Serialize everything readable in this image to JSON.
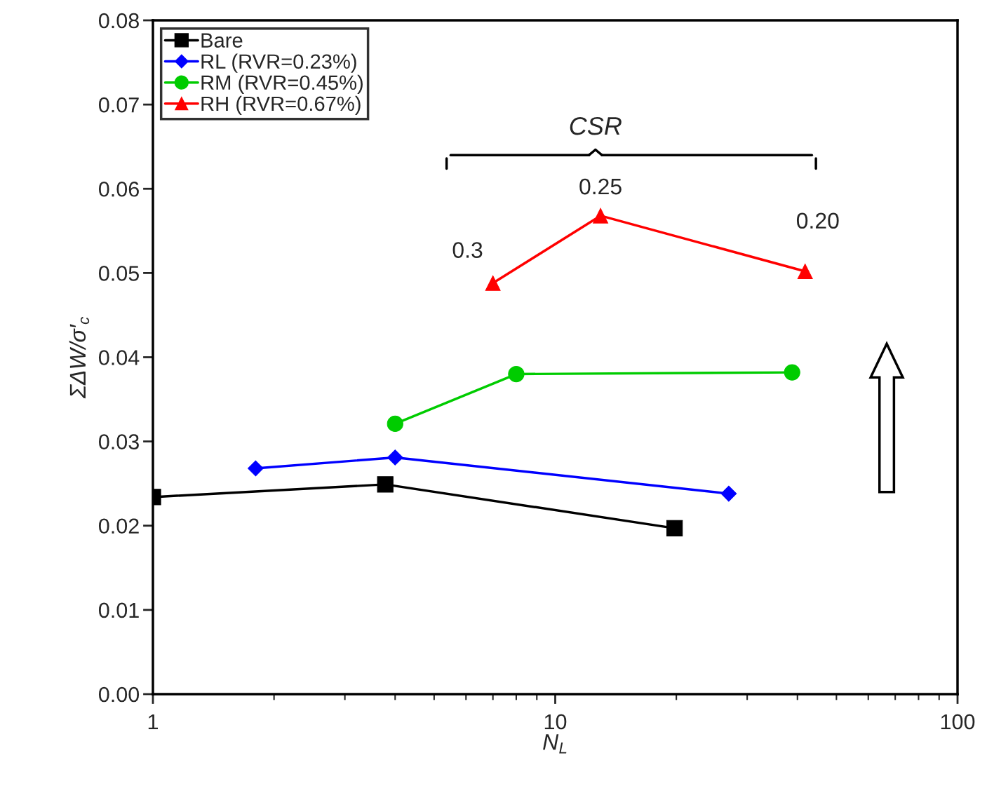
{
  "chart_data": {
    "type": "line",
    "xlabel": "N$_{L}$",
    "ylabel": "ΣΔW/σ′$_{c}$",
    "log": "x",
    "xlim": [
      1,
      100
    ],
    "xticks": [
      1,
      10,
      100
    ],
    "ylim": [
      0,
      0.08
    ],
    "yticks": [
      {
        "value": 0,
        "label": "0.00"
      },
      {
        "value": 0.01,
        "label": "0.01"
      },
      {
        "value": 0.02,
        "label": "0.02"
      },
      {
        "value": 0.03,
        "label": "0.03"
      },
      {
        "value": 0.04,
        "label": "0.04"
      },
      {
        "value": 0.05,
        "label": "0.05"
      },
      {
        "value": 0.06,
        "label": "0.06"
      },
      {
        "value": 0.07,
        "label": "0.07"
      },
      {
        "value": 0.08,
        "label": "0.08"
      }
    ],
    "grid": false,
    "legend": "top left",
    "line_style": "solid",
    "series": [
      {
        "name": "Bare",
        "color": "#000000",
        "marker": "square",
        "x": [
          1,
          3.78,
          19.8
        ],
        "values": [
          0.0234,
          0.0249,
          0.0197
        ]
      },
      {
        "name": "RL (RVR=0.23%)",
        "color": "#0000ff",
        "marker": "diamond",
        "x": [
          1.8,
          4.0,
          27.0
        ],
        "values": [
          0.0268,
          0.0281,
          0.0238
        ]
      },
      {
        "name": "RM (RVR=0.45%)",
        "color": "#00cc00",
        "marker": "circle",
        "x": [
          4.0,
          8.0,
          38.8
        ],
        "values": [
          0.0321,
          0.038,
          0.0382
        ]
      },
      {
        "name": "RH (RVR=0.67%)",
        "color": "#ff0000",
        "marker": "triangle",
        "x": [
          7.0,
          12.96,
          41.8
        ],
        "values": [
          0.0488,
          0.0568,
          0.0502
        ]
      }
    ],
    "annotations": [
      "CSR",
      {
        "text": "0.3",
        "x": 7.0,
        "y": 0.0488
      },
      {
        "text": "0.25",
        "x": 12.96,
        "y": 0.0568
      },
      {
        "text": "0.20",
        "x": 41.8,
        "y": 0.0502
      }
    ]
  }
}
